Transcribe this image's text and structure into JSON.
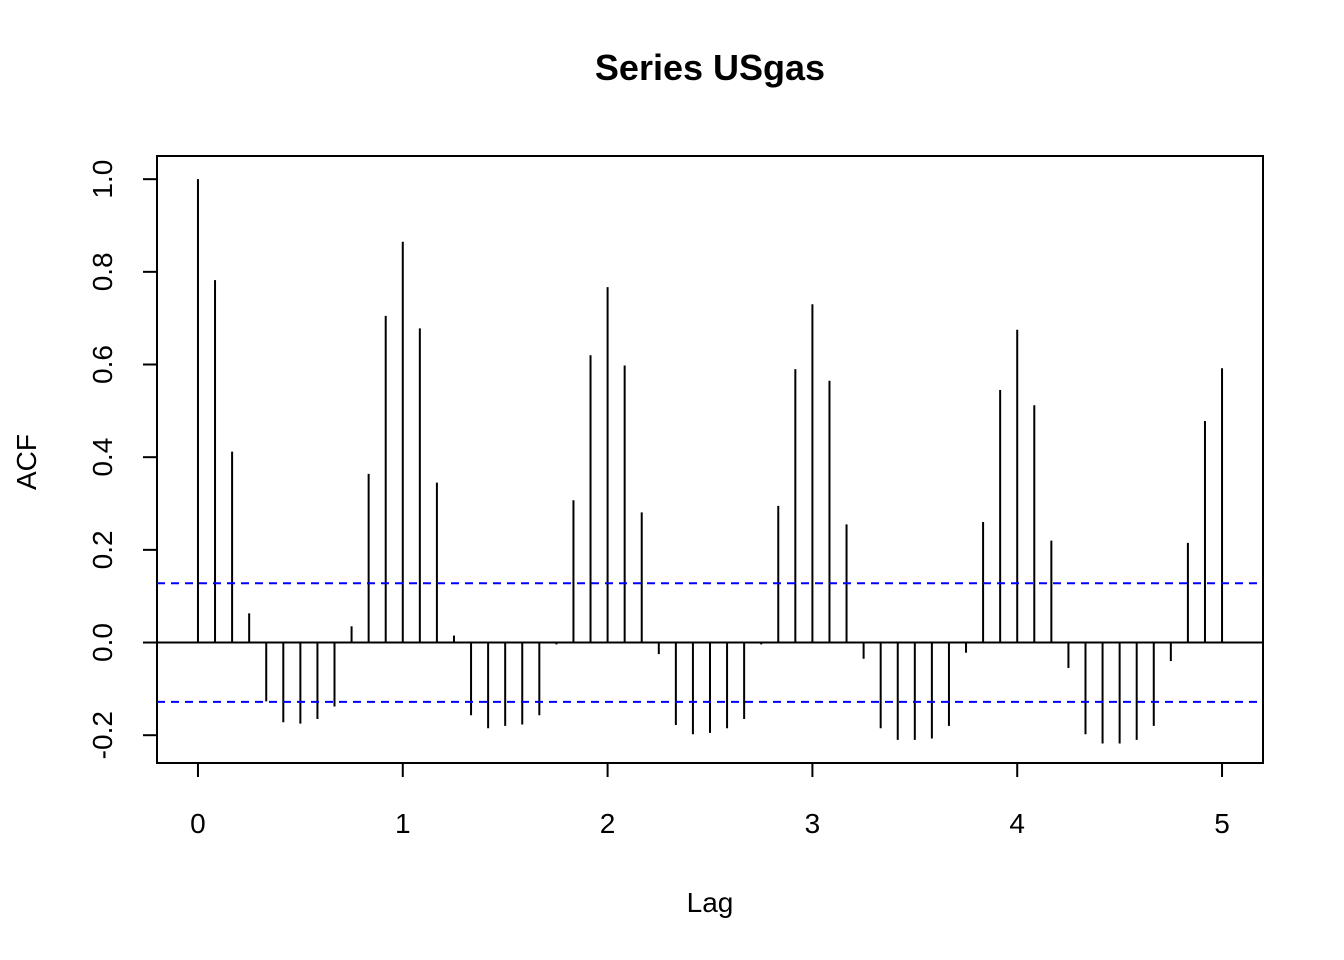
{
  "chart_data": {
    "type": "bar",
    "title": "Series  USgas",
    "xlabel": "Lag",
    "ylabel": "ACF",
    "xlim": [
      -0.2,
      5.2
    ],
    "ylim": [
      -0.26,
      1.05
    ],
    "x_ticks": [
      0,
      1,
      2,
      3,
      4,
      5
    ],
    "x_tick_labels": [
      "0",
      "1",
      "2",
      "3",
      "4",
      "5"
    ],
    "y_ticks": [
      -0.2,
      0.0,
      0.2,
      0.4,
      0.6,
      0.8,
      1.0
    ],
    "y_tick_labels": [
      "-0.2",
      "0.0",
      "0.2",
      "0.4",
      "0.6",
      "0.8",
      "1.0"
    ],
    "lag_step": 0.0833333,
    "acf": [
      1.0,
      0.782,
      0.412,
      0.063,
      -0.127,
      -0.172,
      -0.175,
      -0.165,
      -0.138,
      0.035,
      0.364,
      0.705,
      0.865,
      0.678,
      0.345,
      0.015,
      -0.157,
      -0.185,
      -0.18,
      -0.177,
      -0.157,
      -0.004,
      0.307,
      0.62,
      0.767,
      0.598,
      0.281,
      -0.025,
      -0.178,
      -0.198,
      -0.195,
      -0.185,
      -0.165,
      -0.004,
      0.295,
      0.59,
      0.73,
      0.565,
      0.255,
      -0.035,
      -0.185,
      -0.21,
      -0.21,
      -0.207,
      -0.18,
      -0.022,
      0.26,
      0.545,
      0.675,
      0.512,
      0.22,
      -0.055,
      -0.198,
      -0.218,
      -0.218,
      -0.21,
      -0.18,
      -0.04,
      0.215,
      0.478,
      0.592
    ],
    "confidence_bound": 0.128,
    "colors": {
      "bars": "#000000",
      "confidence": "#0000ff",
      "axes": "#000000"
    },
    "grid": false
  }
}
